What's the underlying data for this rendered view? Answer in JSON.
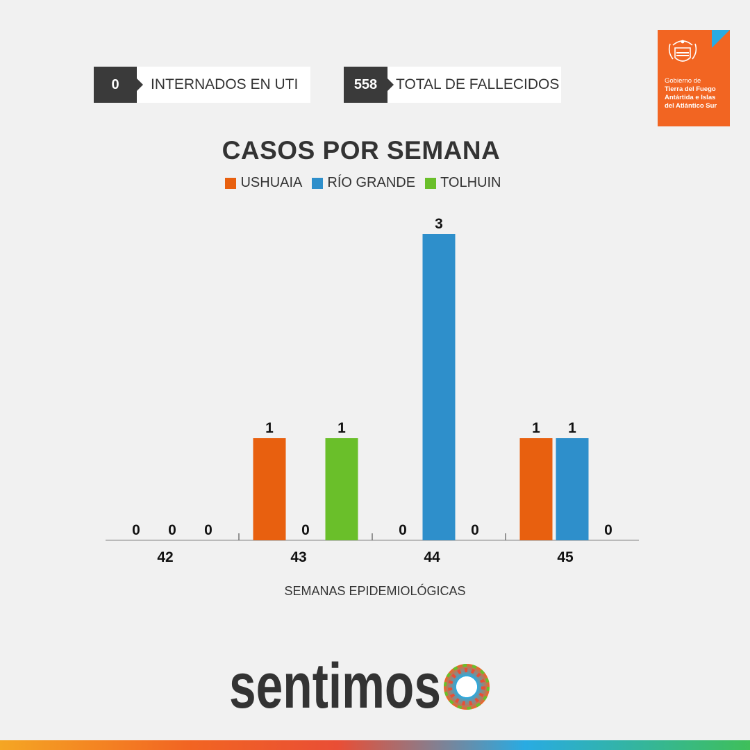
{
  "stats": [
    {
      "value": "0",
      "label": "INTERNADOS EN UTI"
    },
    {
      "value": "558",
      "label": "TOTAL DE FALLECIDOS"
    }
  ],
  "logo": {
    "line1": "Gobierno de",
    "line2": "Tierra del Fuego",
    "line3": "Antártida e Islas",
    "line4": "del Atlántico Sur",
    "color": "#f26522"
  },
  "brand": {
    "text": "sentimos"
  },
  "chart_data": {
    "type": "bar",
    "title": "CASOS POR SEMANA",
    "xlabel": "SEMANAS EPIDEMIOLÓGICAS",
    "ylabel": "",
    "categories": [
      "42",
      "43",
      "44",
      "45"
    ],
    "series": [
      {
        "name": "USHUAIA",
        "color": "#e8600f",
        "values": [
          0,
          1,
          0,
          1
        ]
      },
      {
        "name": "RÍO GRANDE",
        "color": "#2e8fcb",
        "values": [
          0,
          0,
          3,
          1
        ]
      },
      {
        "name": "TOLHUIN",
        "color": "#6abf2a",
        "values": [
          0,
          1,
          0,
          0
        ]
      }
    ],
    "ylim": [
      0,
      3
    ],
    "grid": false,
    "legend": "top-center"
  }
}
